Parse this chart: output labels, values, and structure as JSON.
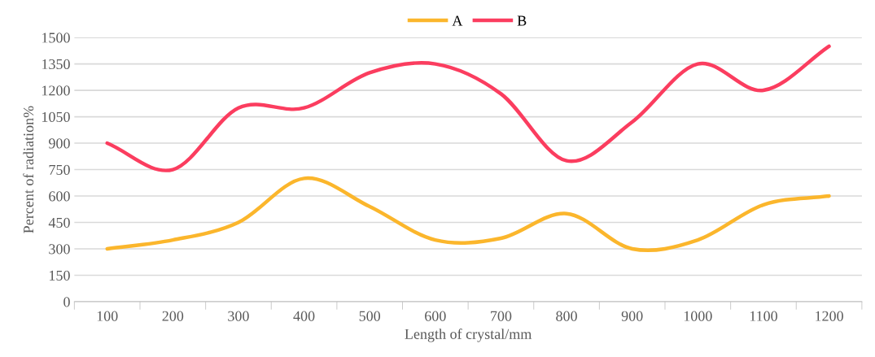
{
  "chart_data": {
    "type": "line",
    "xlabel": "Length of crystal/mm",
    "ylabel": "Percent of radiation%",
    "categories": [
      "100",
      "200",
      "300",
      "400",
      "500",
      "600",
      "700",
      "800",
      "900",
      "1000",
      "1100",
      "1200"
    ],
    "series": [
      {
        "name": "A",
        "color": "#fbb62c",
        "values": [
          300,
          350,
          450,
          700,
          540,
          350,
          360,
          500,
          300,
          350,
          550,
          600
        ]
      },
      {
        "name": "B",
        "color": "#fb3d5f",
        "values": [
          900,
          750,
          1100,
          1100,
          1300,
          1350,
          1180,
          800,
          1020,
          1350,
          1200,
          1450
        ]
      }
    ],
    "ylim": [
      0,
      1500
    ],
    "yticks": [
      0,
      150,
      300,
      450,
      600,
      750,
      900,
      1050,
      1200,
      1350,
      1500
    ],
    "grid": "y",
    "legend": "top",
    "marker": "none",
    "line_style": "solid"
  }
}
